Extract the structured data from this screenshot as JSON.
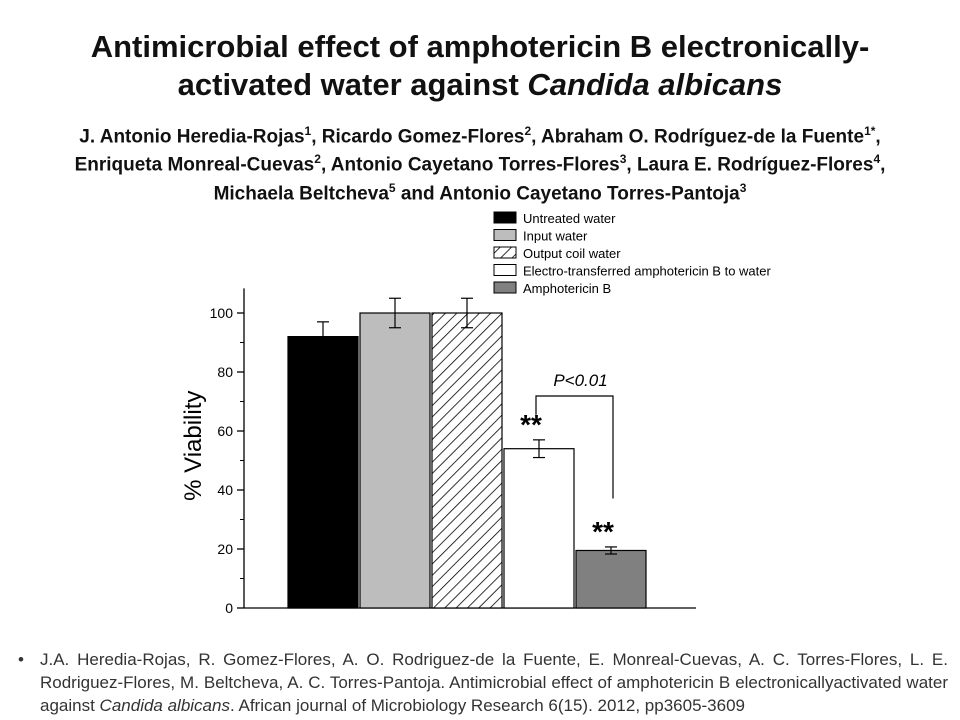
{
  "title": {
    "line1": "Antimicrobial effect of amphotericin B electronically-",
    "line2_prefix": "activated water against ",
    "line2_italic": "Candida albicans"
  },
  "authors": {
    "line1": [
      {
        "name": "J. Antonio Heredia-Rojas",
        "sup": "1"
      },
      {
        "name": ", Ricardo Gomez-Flores",
        "sup": "2"
      },
      {
        "name": ", Abraham O. Rodríguez-de la Fuente",
        "sup": "1*"
      },
      {
        "name": ",",
        "sup": ""
      }
    ],
    "line2": [
      {
        "name": "Enriqueta Monreal-Cuevas",
        "sup": "2"
      },
      {
        "name": ", Antonio Cayetano Torres-Flores",
        "sup": "3"
      },
      {
        "name": ", Laura E. Rodríguez-Flores",
        "sup": "4"
      },
      {
        "name": ",",
        "sup": ""
      }
    ],
    "line3": [
      {
        "name": "Michaela Beltcheva",
        "sup": "5"
      },
      {
        "name": " and Antonio Cayetano Torres-Pantoja",
        "sup": "3"
      }
    ]
  },
  "chart_data": {
    "type": "bar",
    "ylabel": "% Viability",
    "ylim": [
      0,
      110
    ],
    "yticks": [
      0,
      20,
      40,
      60,
      80,
      100
    ],
    "series": [
      {
        "name": "Untreated water",
        "value": 92,
        "error": 5,
        "fill": "#000000",
        "pattern": "solid"
      },
      {
        "name": "Input water",
        "value": 100,
        "error": 5,
        "fill": "#bdbdbd",
        "pattern": "solid"
      },
      {
        "name": "Output coil water",
        "value": 100,
        "error": 5,
        "fill": "#ffffff",
        "pattern": "hatch"
      },
      {
        "name": "Electro-transferred amphotericin B to water",
        "value": 54,
        "error": 3,
        "fill": "#ffffff",
        "pattern": "solid"
      },
      {
        "name": "Amphotericin B",
        "value": 19.5,
        "error": 1.2,
        "fill": "#808080",
        "pattern": "solid"
      }
    ],
    "significance_marks": [
      {
        "bar_index": 3,
        "label": "**"
      },
      {
        "bar_index": 4,
        "label": "**"
      }
    ],
    "comparison": {
      "from": 3,
      "to": 4,
      "label": "P<0.01"
    },
    "legend_position": "top-right"
  },
  "citation": {
    "bullet": "•",
    "text_before": "J.A. Heredia-Rojas, R. Gomez-Flores, A. O. Rodriguez-de la Fuente, E. Monreal-Cuevas, A. C. Torres-Flores, L. E. Rodriguez-Flores, M. Beltcheva, A. C. Torres-Pantoja. Antimicrobial effect of amphotericin B electronicallyactivated water against ",
    "text_italic": "Candida albicans",
    "text_after": ". African journal of Microbiology Research 6(15). 2012, pp3605-3609"
  }
}
